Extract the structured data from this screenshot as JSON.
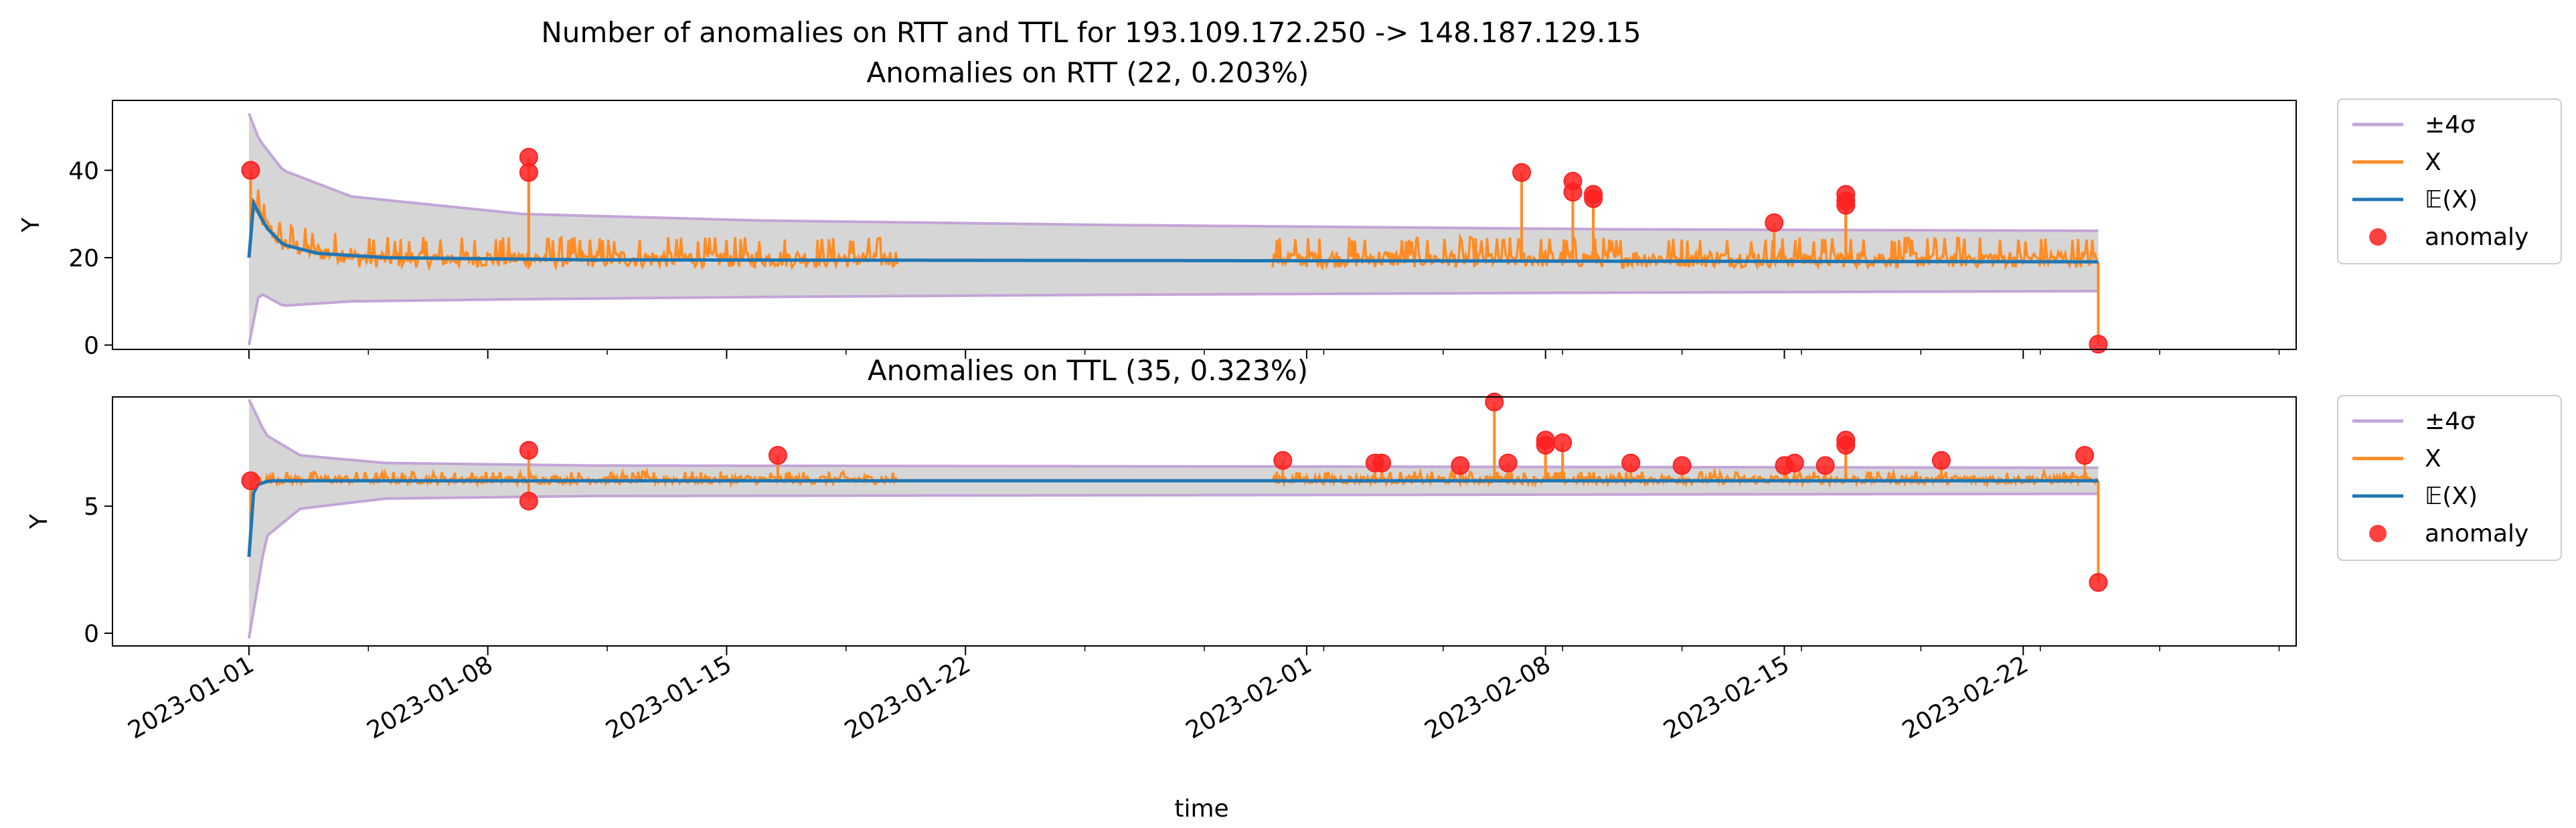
{
  "figure_title": "Number of anomalies on RTT and TTL for 193.109.172.250 -> 148.187.129.15",
  "xlabel": "time",
  "x_ticks": [
    "2023-01-01",
    "2023-01-08",
    "2023-01-15",
    "2023-01-22",
    "2023-02-01",
    "2023-02-08",
    "2023-02-15",
    "2023-02-22"
  ],
  "legend_labels": [
    "±4σ",
    "X",
    "𝔼(X)",
    "anomaly"
  ],
  "colors": {
    "band_line": "#c2a5d8",
    "band_fill": "#d6d6d6",
    "x": "#ff8c24",
    "mean": "#1f77b4",
    "anomaly": "#ff2020"
  },
  "chart_data": [
    {
      "type": "line",
      "title": "Anomalies on RTT (22, 0.203%)",
      "ylabel": "Y",
      "ylim": [
        -1,
        56
      ],
      "yticks": [
        0,
        20,
        40
      ],
      "xlim": [
        "2022-12-28",
        "2023-03-02"
      ],
      "grid": false,
      "legend_position": "outside-right",
      "gap": [
        "2023-01-20",
        "2023-01-31"
      ],
      "series": [
        {
          "name": "±4σ",
          "upper": [
            [
              0.0,
              53
            ],
            [
              0.3,
              47
            ],
            [
              1,
              40
            ],
            [
              3,
              34
            ],
            [
              8,
              30
            ],
            [
              15,
              28.5
            ],
            [
              25,
              27.5
            ],
            [
              40,
              26.5
            ],
            [
              60,
              26
            ]
          ],
          "lower": [
            [
              0.0,
              0
            ],
            [
              0.3,
              12
            ],
            [
              1,
              9
            ],
            [
              3,
              10
            ],
            [
              8,
              10.5
            ],
            [
              15,
              11
            ],
            [
              25,
              11.5
            ],
            [
              40,
              12
            ],
            [
              60,
              12.5
            ]
          ]
        },
        {
          "name": "X",
          "level": 19.5,
          "spread": 3.5
        },
        {
          "name": "𝔼(X)",
          "points": [
            [
              0.0,
              20
            ],
            [
              0.1,
              33
            ],
            [
              0.5,
              27
            ],
            [
              1,
              23
            ],
            [
              2,
              21
            ],
            [
              4,
              20
            ],
            [
              10,
              19.5
            ],
            [
              60,
              19
            ]
          ]
        },
        {
          "name": "anomaly",
          "points": [
            [
              0.05,
              40
            ],
            [
              8.2,
              43
            ],
            [
              8.2,
              39.5
            ],
            [
              37.3,
              39.5
            ],
            [
              38.8,
              37.5
            ],
            [
              38.8,
              35
            ],
            [
              39.4,
              34.5
            ],
            [
              39.4,
              33.5
            ],
            [
              44.7,
              28
            ],
            [
              46.8,
              34.5
            ],
            [
              46.8,
              33
            ],
            [
              46.8,
              32
            ],
            [
              54.2,
              0.2
            ]
          ]
        }
      ]
    },
    {
      "type": "line",
      "title": "Anomalies on TTL (35, 0.323%)",
      "ylabel": "Y",
      "ylim": [
        -0.5,
        9.3
      ],
      "yticks": [
        0,
        5
      ],
      "xlim": [
        "2022-12-28",
        "2023-03-02"
      ],
      "grid": false,
      "legend_position": "outside-right",
      "gap": [
        "2023-01-20",
        "2023-01-31"
      ],
      "series": [
        {
          "name": "±4σ",
          "upper": [
            [
              0.0,
              9.2
            ],
            [
              0.5,
              7.8
            ],
            [
              1.5,
              7.0
            ],
            [
              4,
              6.7
            ],
            [
              10,
              6.6
            ],
            [
              60,
              6.5
            ]
          ],
          "lower": [
            [
              0.0,
              -0.2
            ],
            [
              0.5,
              3.8
            ],
            [
              1.5,
              4.9
            ],
            [
              4,
              5.3
            ],
            [
              10,
              5.4
            ],
            [
              60,
              5.5
            ]
          ]
        },
        {
          "name": "X",
          "level": 6.0,
          "spread": 0.35
        },
        {
          "name": "𝔼(X)",
          "points": [
            [
              0.0,
              3.0
            ],
            [
              0.15,
              5.8
            ],
            [
              0.6,
              6.0
            ],
            [
              60,
              6.0
            ]
          ]
        },
        {
          "name": "anomaly",
          "points": [
            [
              0.05,
              6.0
            ],
            [
              8.2,
              7.2
            ],
            [
              8.2,
              5.2
            ],
            [
              15.5,
              7.0
            ],
            [
              30.3,
              6.8
            ],
            [
              33.0,
              6.7
            ],
            [
              33.2,
              6.7
            ],
            [
              35.5,
              6.6
            ],
            [
              36.5,
              9.1
            ],
            [
              36.9,
              6.7
            ],
            [
              38.0,
              7.6
            ],
            [
              38.0,
              7.4
            ],
            [
              38.5,
              7.5
            ],
            [
              40.5,
              6.7
            ],
            [
              42.0,
              6.6
            ],
            [
              45.0,
              6.6
            ],
            [
              45.3,
              6.7
            ],
            [
              46.2,
              6.6
            ],
            [
              46.8,
              7.6
            ],
            [
              46.8,
              7.4
            ],
            [
              49.6,
              6.8
            ],
            [
              53.8,
              7.0
            ],
            [
              54.2,
              2.0
            ]
          ]
        }
      ]
    }
  ]
}
